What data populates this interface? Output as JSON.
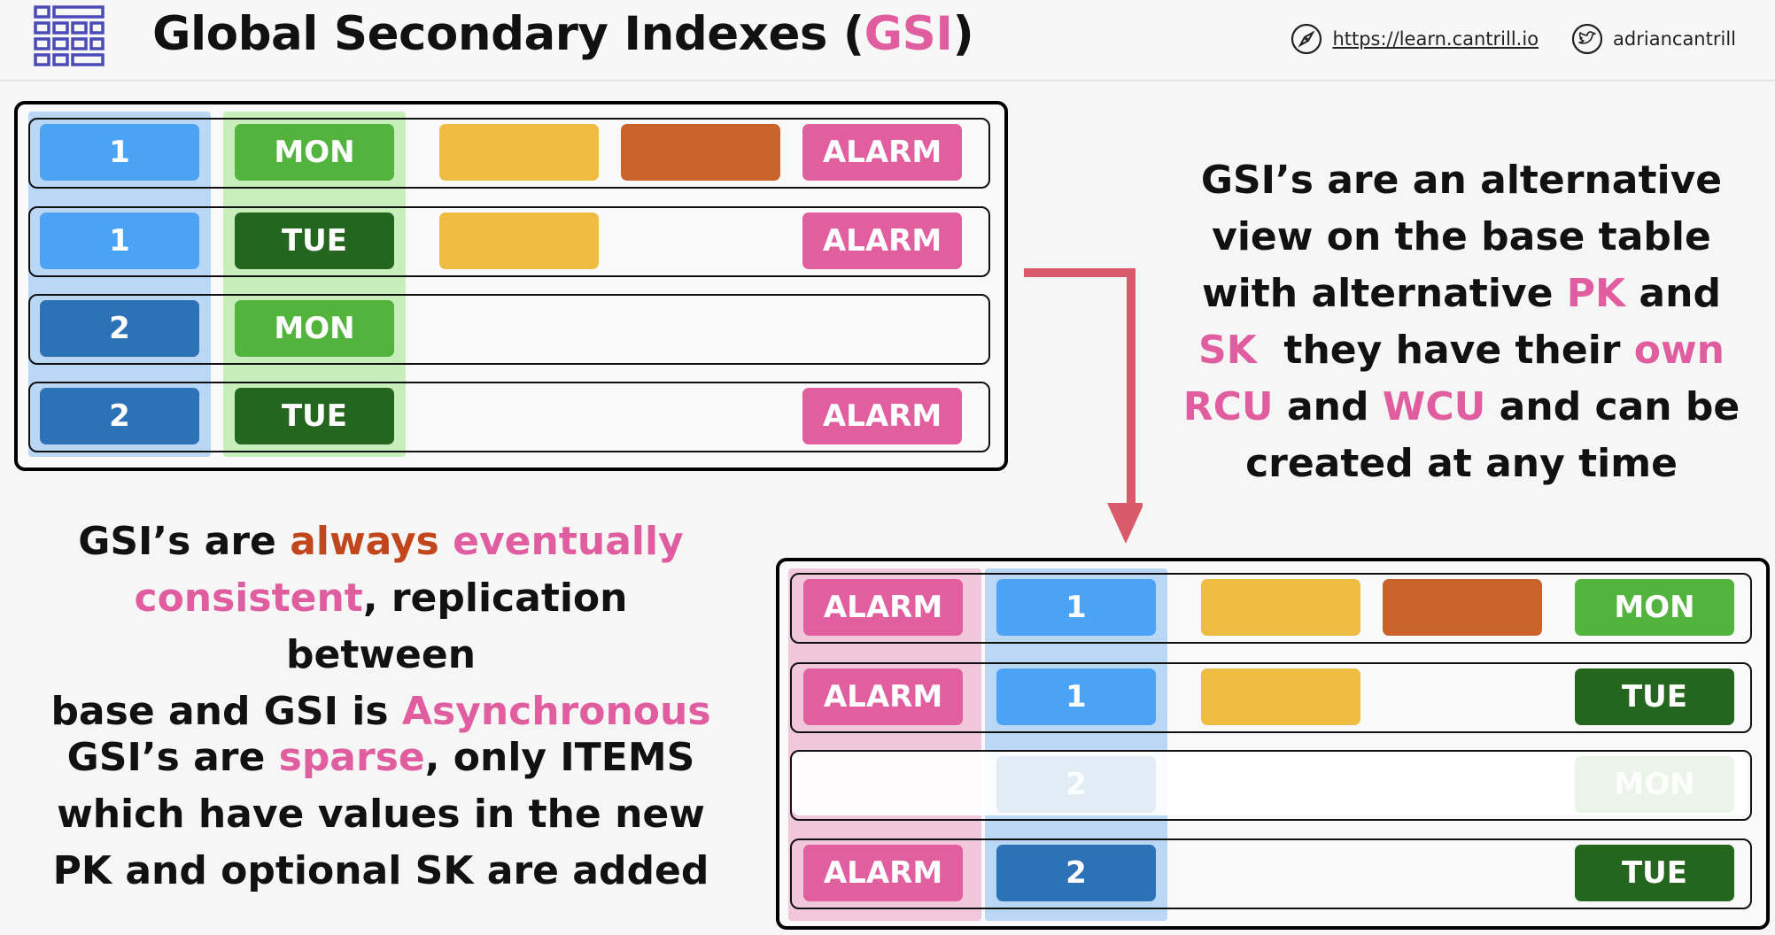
{
  "header": {
    "title_prefix": "Global Secondary Indexes (",
    "title_highlight": "GSI",
    "title_suffix": ")",
    "website": "https://learn.cantrill.io",
    "twitter": "adriancantrill",
    "icons": [
      "table-grid-icon",
      "compass-icon",
      "twitter-bird-icon"
    ]
  },
  "base_table": {
    "rows": [
      {
        "pk": "1",
        "sk": "MON",
        "alarm": "ALARM"
      },
      {
        "pk": "1",
        "sk": "TUE",
        "alarm": "ALARM"
      },
      {
        "pk": "2",
        "sk": "MON",
        "alarm": ""
      },
      {
        "pk": "2",
        "sk": "TUE",
        "alarm": "ALARM"
      }
    ]
  },
  "gsi_table": {
    "rows": [
      {
        "alarm": "ALARM",
        "id": "1",
        "day": "MON"
      },
      {
        "alarm": "ALARM",
        "id": "1",
        "day": "TUE"
      },
      {
        "alarm": "",
        "id": "2",
        "day": "MON"
      },
      {
        "alarm": "ALARM",
        "id": "2",
        "day": "TUE"
      }
    ]
  },
  "text_right": {
    "l1": "GSI’s are an alternative",
    "l2": "view on the base table",
    "l3a": "with alternative ",
    "l3b": "PK",
    "l3c": " and",
    "l4a": "SK",
    "l4b": "  they have their ",
    "l4c": "own",
    "l5a": "RCU",
    "l5b": " and ",
    "l5c": "WCU",
    "l5d": " and can be",
    "l6": "created at any time"
  },
  "text_left1": {
    "l1a": "GSI’s are ",
    "l1b": "always",
    "l1c": " ",
    "l1d": "eventually",
    "l2a": "consistent",
    "l2b": ", replication between",
    "l3a": "base and GSI is ",
    "l3b": "Asynchronous"
  },
  "text_left2": {
    "l1a": "GSI’s are ",
    "l1b": "sparse",
    "l1c": ", only ITEMS",
    "l2": "which have values in the new",
    "l3": "PK and optional SK are added"
  },
  "colors": {
    "highlight_pink": "#e05ea0",
    "highlight_red": "#c2461b",
    "light_blue": "#4aa3f5",
    "dark_blue": "#2d72b6",
    "green": "#52b43d",
    "dark_green": "#25661f",
    "yellow": "#efbc42",
    "orange": "#c9632a",
    "pink": "#e25f9f",
    "arrow": "#d95a6a"
  }
}
